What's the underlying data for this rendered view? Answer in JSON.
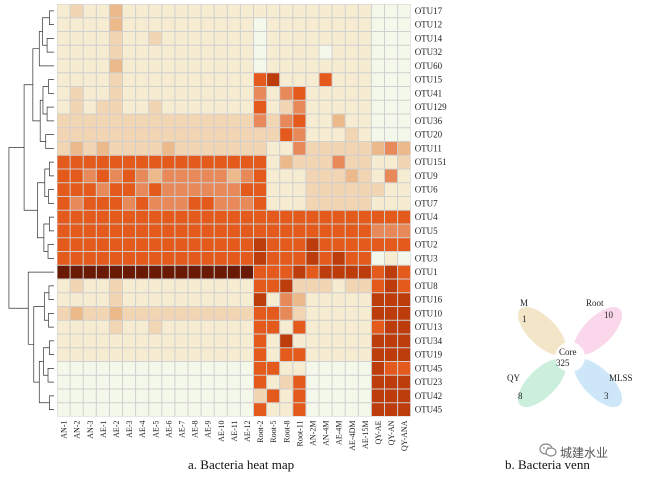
{
  "heatmap": {
    "caption": "a.  Bacteria heat map",
    "rows": [
      "OTU17",
      "OTU12",
      "OTU14",
      "OTU32",
      "OTU60",
      "OTU15",
      "OTU41",
      "OTU129",
      "OTU36",
      "OTU20",
      "OTU11",
      "OTU151",
      "OTU9",
      "OTU6",
      "OTU7",
      "OTU4",
      "OTU5",
      "OTU2",
      "OTU3",
      "OTU1",
      "OTU8",
      "OTU16",
      "OTU10",
      "OTU13",
      "OTU34",
      "OTU19",
      "OTU45",
      "OTU23",
      "OTU42",
      "OTU45"
    ],
    "columns": [
      "AN-1",
      "AN-2",
      "AN-3",
      "AE-1",
      "AE-2",
      "AE-3",
      "AE-4",
      "AE-5",
      "AE-6",
      "AE-7",
      "AE-8",
      "AE-9",
      "AE-10",
      "AE-11",
      "AE-12",
      "Root-2",
      "Root-5",
      "Root-8",
      "Root-11",
      "AN-2M",
      "AN-4M",
      "AE-4M",
      "AE-4DM",
      "AE-15M",
      "QY-AE",
      "QY-AN",
      "QY-ANA"
    ],
    "palette": [
      "#f4f8ea",
      "#f6ecd2",
      "#f2d6b4",
      "#ecb98a",
      "#e8895a",
      "#e35a1c",
      "#bd3c0c",
      "#6a1a04"
    ],
    "values": [
      [
        1,
        2,
        1,
        1,
        3,
        1,
        1,
        1,
        1,
        1,
        1,
        1,
        1,
        1,
        1,
        1,
        1,
        1,
        1,
        1,
        1,
        1,
        1,
        1,
        0,
        0,
        0
      ],
      [
        1,
        1,
        1,
        1,
        3,
        1,
        1,
        1,
        1,
        1,
        1,
        1,
        1,
        1,
        1,
        0,
        1,
        1,
        1,
        1,
        1,
        1,
        1,
        1,
        0,
        0,
        0
      ],
      [
        1,
        1,
        1,
        1,
        2,
        1,
        1,
        2,
        1,
        1,
        1,
        1,
        1,
        1,
        1,
        0,
        1,
        1,
        1,
        1,
        1,
        1,
        1,
        1,
        0,
        0,
        0
      ],
      [
        1,
        1,
        1,
        1,
        2,
        1,
        1,
        1,
        1,
        1,
        1,
        1,
        1,
        1,
        1,
        0,
        1,
        1,
        1,
        1,
        0,
        1,
        1,
        1,
        0,
        0,
        0
      ],
      [
        1,
        1,
        1,
        1,
        3,
        1,
        1,
        1,
        1,
        1,
        1,
        1,
        1,
        1,
        1,
        0,
        1,
        1,
        1,
        1,
        1,
        1,
        1,
        1,
        0,
        0,
        0
      ],
      [
        1,
        1,
        1,
        1,
        2,
        1,
        1,
        1,
        1,
        1,
        1,
        1,
        1,
        1,
        1,
        5,
        6,
        1,
        1,
        1,
        5,
        1,
        1,
        1,
        0,
        0,
        0
      ],
      [
        1,
        2,
        1,
        1,
        2,
        1,
        1,
        1,
        1,
        1,
        1,
        1,
        1,
        1,
        1,
        4,
        1,
        4,
        5,
        1,
        1,
        1,
        1,
        1,
        0,
        0,
        0
      ],
      [
        1,
        2,
        1,
        2,
        2,
        1,
        1,
        2,
        1,
        1,
        1,
        1,
        1,
        1,
        1,
        5,
        1,
        2,
        4,
        1,
        1,
        1,
        1,
        1,
        0,
        0,
        0
      ],
      [
        2,
        2,
        2,
        2,
        2,
        2,
        2,
        2,
        2,
        2,
        2,
        2,
        2,
        2,
        2,
        4,
        2,
        4,
        5,
        1,
        1,
        3,
        1,
        1,
        0,
        0,
        0
      ],
      [
        2,
        2,
        2,
        2,
        2,
        2,
        2,
        2,
        2,
        2,
        2,
        2,
        2,
        2,
        2,
        2,
        2,
        5,
        4,
        1,
        1,
        1,
        2,
        1,
        0,
        0,
        0
      ],
      [
        2,
        3,
        2,
        3,
        2,
        2,
        2,
        2,
        3,
        2,
        2,
        2,
        2,
        2,
        2,
        2,
        1,
        1,
        4,
        2,
        2,
        2,
        2,
        2,
        3,
        4,
        3
      ],
      [
        5,
        5,
        5,
        5,
        5,
        5,
        5,
        5,
        5,
        5,
        5,
        5,
        5,
        5,
        5,
        5,
        1,
        3,
        2,
        2,
        2,
        4,
        2,
        2,
        1,
        1,
        2
      ],
      [
        5,
        5,
        4,
        5,
        4,
        5,
        4,
        3,
        4,
        4,
        4,
        4,
        4,
        3,
        4,
        5,
        1,
        1,
        1,
        2,
        2,
        2,
        3,
        2,
        1,
        4,
        1
      ],
      [
        5,
        5,
        5,
        4,
        5,
        5,
        4,
        5,
        4,
        4,
        4,
        4,
        4,
        4,
        5,
        5,
        1,
        1,
        1,
        2,
        2,
        2,
        2,
        2,
        2,
        1,
        1
      ],
      [
        5,
        4,
        5,
        5,
        5,
        4,
        5,
        4,
        4,
        4,
        5,
        5,
        4,
        4,
        4,
        5,
        1,
        1,
        1,
        2,
        2,
        2,
        2,
        2,
        1,
        1,
        1
      ],
      [
        5,
        5,
        5,
        5,
        5,
        5,
        5,
        5,
        5,
        5,
        5,
        5,
        5,
        5,
        5,
        5,
        5,
        5,
        5,
        5,
        5,
        5,
        5,
        5,
        5,
        5,
        5
      ],
      [
        5,
        5,
        5,
        5,
        5,
        5,
        5,
        5,
        5,
        5,
        5,
        5,
        5,
        5,
        5,
        5,
        5,
        5,
        5,
        5,
        5,
        5,
        5,
        5,
        4,
        4,
        4
      ],
      [
        5,
        5,
        5,
        5,
        5,
        5,
        5,
        5,
        5,
        5,
        5,
        5,
        5,
        5,
        5,
        6,
        5,
        5,
        5,
        6,
        5,
        5,
        5,
        5,
        5,
        5,
        5
      ],
      [
        5,
        5,
        5,
        5,
        5,
        5,
        5,
        5,
        5,
        5,
        5,
        5,
        5,
        5,
        5,
        6,
        5,
        5,
        5,
        6,
        5,
        6,
        5,
        5,
        0,
        1,
        0
      ],
      [
        7,
        7,
        7,
        7,
        7,
        7,
        7,
        7,
        7,
        7,
        7,
        7,
        7,
        7,
        7,
        5,
        5,
        5,
        6,
        5,
        6,
        6,
        6,
        6,
        5,
        6,
        5
      ],
      [
        1,
        2,
        1,
        1,
        2,
        1,
        1,
        1,
        1,
        1,
        1,
        1,
        1,
        1,
        1,
        5,
        5,
        6,
        2,
        2,
        2,
        1,
        2,
        2,
        5,
        6,
        5
      ],
      [
        1,
        1,
        1,
        1,
        2,
        1,
        1,
        1,
        1,
        1,
        1,
        1,
        1,
        1,
        1,
        6,
        1,
        4,
        3,
        1,
        1,
        1,
        1,
        1,
        6,
        6,
        6
      ],
      [
        2,
        3,
        2,
        2,
        3,
        2,
        2,
        2,
        2,
        2,
        2,
        2,
        2,
        2,
        2,
        5,
        5,
        4,
        2,
        1,
        1,
        1,
        1,
        1,
        6,
        6,
        6
      ],
      [
        1,
        1,
        1,
        1,
        2,
        1,
        1,
        2,
        1,
        1,
        1,
        1,
        1,
        1,
        1,
        5,
        5,
        1,
        5,
        1,
        1,
        1,
        1,
        1,
        5,
        6,
        6
      ],
      [
        1,
        1,
        1,
        1,
        1,
        1,
        1,
        1,
        1,
        1,
        1,
        1,
        1,
        1,
        1,
        5,
        1,
        6,
        1,
        1,
        1,
        1,
        1,
        1,
        6,
        6,
        6
      ],
      [
        1,
        1,
        1,
        1,
        1,
        1,
        1,
        1,
        1,
        1,
        1,
        1,
        1,
        1,
        1,
        5,
        1,
        5,
        5,
        1,
        1,
        1,
        1,
        1,
        6,
        6,
        6
      ],
      [
        0,
        0,
        0,
        0,
        0,
        0,
        0,
        0,
        0,
        0,
        0,
        0,
        0,
        0,
        0,
        5,
        5,
        1,
        1,
        0,
        0,
        0,
        0,
        0,
        6,
        5,
        5
      ],
      [
        0,
        0,
        0,
        0,
        0,
        0,
        0,
        0,
        0,
        0,
        0,
        0,
        0,
        0,
        0,
        5,
        1,
        2,
        5,
        0,
        0,
        0,
        0,
        0,
        6,
        6,
        6
      ],
      [
        0,
        0,
        0,
        0,
        0,
        0,
        0,
        0,
        0,
        0,
        0,
        0,
        0,
        0,
        0,
        2,
        5,
        1,
        5,
        0,
        0,
        0,
        0,
        0,
        6,
        6,
        6
      ],
      [
        0,
        0,
        0,
        0,
        0,
        0,
        0,
        0,
        0,
        0,
        0,
        0,
        0,
        0,
        0,
        5,
        1,
        1,
        5,
        0,
        0,
        0,
        0,
        0,
        6,
        6,
        6
      ]
    ]
  },
  "venn": {
    "caption": "b.  Bacteria venn",
    "sets": [
      {
        "name": "M",
        "count": "1",
        "color": "#f2e2c2"
      },
      {
        "name": "Root",
        "count": "10",
        "color": "#fbd3ea"
      },
      {
        "name": "QY",
        "count": "8",
        "color": "#c5ecd9"
      },
      {
        "name": "MLSS",
        "count": "3",
        "color": "#c8e4f8"
      }
    ],
    "core_label": "Core",
    "core_count": "325"
  },
  "watermark": "城建水业"
}
